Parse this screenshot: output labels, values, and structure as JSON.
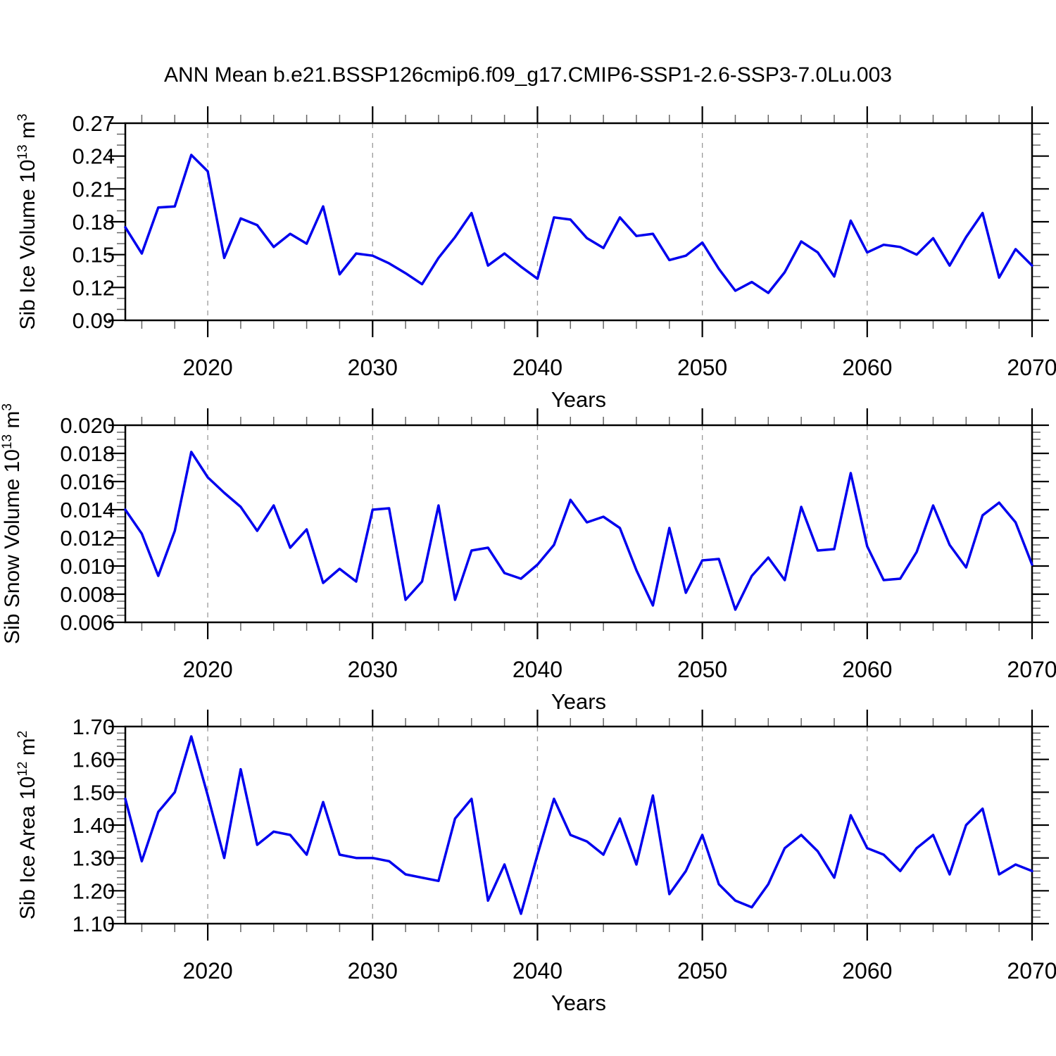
{
  "title": "ANN Mean b.e21.BSSP126cmip6.f09_g17.CMIP6-SSP1-2.6-SSP3-7.0Lu.003",
  "colors": {
    "line": "#0000ee",
    "frame": "#000000",
    "major_tick": "#000000",
    "minor_tick": "#666666",
    "gridline": "#999999",
    "background": "#ffffff"
  },
  "x_axis": {
    "label": "Years",
    "range": [
      2015,
      2070
    ],
    "major_ticks": [
      2020,
      2030,
      2040,
      2050,
      2060,
      2070
    ],
    "major_tick_labels": [
      "2020",
      "2030",
      "2040",
      "2050",
      "2060",
      "2070"
    ],
    "minor_step": 2,
    "grid_decades": [
      2020,
      2030,
      2040,
      2050,
      2060
    ]
  },
  "years": [
    2015,
    2016,
    2017,
    2018,
    2019,
    2020,
    2021,
    2022,
    2023,
    2024,
    2025,
    2026,
    2027,
    2028,
    2029,
    2030,
    2031,
    2032,
    2033,
    2034,
    2035,
    2036,
    2037,
    2038,
    2039,
    2040,
    2041,
    2042,
    2043,
    2044,
    2045,
    2046,
    2047,
    2048,
    2049,
    2050,
    2051,
    2052,
    2053,
    2054,
    2055,
    2056,
    2057,
    2058,
    2059,
    2060,
    2061,
    2062,
    2063,
    2064,
    2065,
    2066,
    2067,
    2068,
    2069,
    2070
  ],
  "chart_data": [
    {
      "type": "line",
      "ylabel": "Sib Ice Volume 10^13 m^3",
      "ylabel_parts": [
        {
          "t": "Sib Ice Volume 10"
        },
        {
          "s": "13"
        },
        {
          "t": " m"
        },
        {
          "s": "3"
        }
      ],
      "xlabel": "Years",
      "ylim": [
        0.09,
        0.27
      ],
      "ytick_values": [
        0.27,
        0.24,
        0.21,
        0.18,
        0.15,
        0.12,
        0.09
      ],
      "ytick_labels": [
        "0.27",
        "0.24",
        "0.21",
        "0.18",
        "0.15",
        "0.12",
        "0.09"
      ],
      "yminor_step": 0.01,
      "grid": "vertical-dashed",
      "values": [
        0.175,
        0.151,
        0.193,
        0.194,
        0.241,
        0.226,
        0.147,
        0.183,
        0.177,
        0.157,
        0.169,
        0.16,
        0.194,
        0.132,
        0.151,
        0.149,
        0.142,
        0.133,
        0.123,
        0.147,
        0.166,
        0.188,
        0.14,
        0.151,
        0.139,
        0.128,
        0.184,
        0.182,
        0.165,
        0.156,
        0.184,
        0.167,
        0.169,
        0.145,
        0.149,
        0.161,
        0.137,
        0.117,
        0.125,
        0.115,
        0.134,
        0.162,
        0.152,
        0.13,
        0.181,
        0.152,
        0.159,
        0.157,
        0.15,
        0.165,
        0.14,
        0.166,
        0.188,
        0.129,
        0.155,
        0.14
      ]
    },
    {
      "type": "line",
      "ylabel": "Sib Snow Volume 10^13 m^3",
      "ylabel_parts": [
        {
          "t": "Sib Snow Volume 10"
        },
        {
          "s": "13"
        },
        {
          "t": " m"
        },
        {
          "s": "3"
        }
      ],
      "xlabel": "Years",
      "ylim": [
        0.006,
        0.02
      ],
      "ytick_values": [
        0.02,
        0.018,
        0.016,
        0.014,
        0.012,
        0.01,
        0.008,
        0.006
      ],
      "ytick_labels": [
        "0.020",
        "0.018",
        "0.016",
        "0.014",
        "0.012",
        "0.010",
        "0.008",
        "0.006"
      ],
      "yminor_step": 0.0005,
      "grid": "vertical-dashed",
      "values": [
        0.014,
        0.0123,
        0.0093,
        0.0125,
        0.0181,
        0.0163,
        0.0152,
        0.0142,
        0.0125,
        0.0143,
        0.0113,
        0.0126,
        0.0088,
        0.0098,
        0.0089,
        0.014,
        0.0141,
        0.0076,
        0.0089,
        0.0143,
        0.0076,
        0.0111,
        0.0113,
        0.0095,
        0.0091,
        0.0101,
        0.0115,
        0.0147,
        0.0131,
        0.0135,
        0.0127,
        0.0097,
        0.0072,
        0.0127,
        0.0081,
        0.0104,
        0.0105,
        0.0069,
        0.0093,
        0.0106,
        0.009,
        0.0142,
        0.0111,
        0.0112,
        0.0166,
        0.0114,
        0.009,
        0.0091,
        0.011,
        0.0143,
        0.0115,
        0.0099,
        0.0136,
        0.0145,
        0.0131,
        0.0101
      ]
    },
    {
      "type": "line",
      "ylabel": "Sib Ice Area 10^12 m^2",
      "ylabel_parts": [
        {
          "t": "Sib Ice Area 10"
        },
        {
          "s": "12"
        },
        {
          "t": " m"
        },
        {
          "s": "2"
        }
      ],
      "xlabel": "Years",
      "ylim": [
        1.1,
        1.7
      ],
      "ytick_values": [
        1.7,
        1.6,
        1.5,
        1.4,
        1.3,
        1.2,
        1.1
      ],
      "ytick_labels": [
        "1.70",
        "1.60",
        "1.50",
        "1.40",
        "1.30",
        "1.20",
        "1.10"
      ],
      "yminor_step": 0.02,
      "grid": "vertical-dashed",
      "values": [
        1.48,
        1.29,
        1.44,
        1.5,
        1.67,
        1.49,
        1.3,
        1.57,
        1.34,
        1.38,
        1.37,
        1.31,
        1.47,
        1.31,
        1.3,
        1.3,
        1.29,
        1.25,
        1.24,
        1.23,
        1.42,
        1.48,
        1.17,
        1.28,
        1.13,
        1.31,
        1.48,
        1.37,
        1.35,
        1.31,
        1.42,
        1.28,
        1.49,
        1.19,
        1.26,
        1.37,
        1.22,
        1.17,
        1.15,
        1.22,
        1.33,
        1.37,
        1.32,
        1.24,
        1.43,
        1.33,
        1.31,
        1.26,
        1.33,
        1.37,
        1.25,
        1.4,
        1.45,
        1.25,
        1.28,
        1.26
      ]
    }
  ]
}
